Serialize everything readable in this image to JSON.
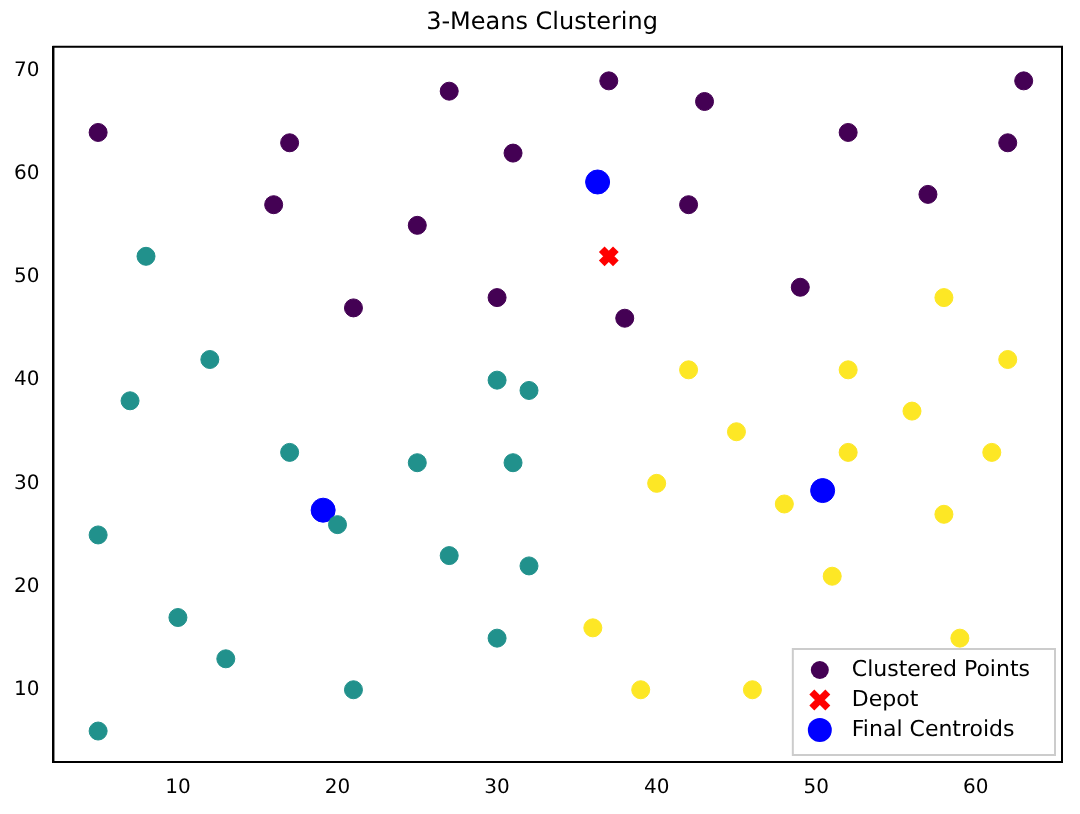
{
  "chart_data": {
    "type": "scatter",
    "title": "3-Means Clustering",
    "xlim": [
      2.2,
      65.4
    ],
    "ylim": [
      3.0,
      72.3
    ],
    "xticks": [
      10,
      20,
      30,
      40,
      50,
      60
    ],
    "yticks": [
      10,
      20,
      30,
      40,
      50,
      60,
      70
    ],
    "grid": false,
    "legend": "bottom right",
    "series": [
      {
        "name": "Clustered Points",
        "marker": "circle",
        "color": "#440154",
        "x": [
          5,
          17,
          16,
          21,
          25,
          27,
          31,
          30,
          37,
          43,
          38,
          42,
          52,
          49,
          57,
          62,
          63,
          8,
          12,
          7,
          17,
          5,
          10,
          13,
          5,
          20,
          21,
          25,
          27,
          30,
          32,
          31,
          32,
          30,
          58,
          42,
          52,
          62,
          45,
          56,
          40,
          52,
          61,
          48,
          58,
          51,
          36,
          59,
          39,
          46
        ],
        "values": [
          64,
          63,
          57,
          47,
          55,
          68,
          62,
          48,
          69,
          67,
          46,
          57,
          64,
          49,
          58,
          63,
          69,
          52,
          42,
          38,
          33,
          25,
          17,
          13,
          6,
          26,
          10,
          32,
          23,
          40,
          39,
          32,
          22,
          15,
          48,
          41,
          41,
          42,
          35,
          37,
          30,
          33,
          33,
          28,
          27,
          21,
          16,
          15,
          10,
          10
        ],
        "colors": [
          "#440154",
          "#440154",
          "#440154",
          "#440154",
          "#440154",
          "#440154",
          "#440154",
          "#440154",
          "#440154",
          "#440154",
          "#440154",
          "#440154",
          "#440154",
          "#440154",
          "#440154",
          "#440154",
          "#440154",
          "#21918c",
          "#21918c",
          "#21918c",
          "#21918c",
          "#21918c",
          "#21918c",
          "#21918c",
          "#21918c",
          "#21918c",
          "#21918c",
          "#21918c",
          "#21918c",
          "#21918c",
          "#21918c",
          "#21918c",
          "#21918c",
          "#21918c",
          "#fde725",
          "#fde725",
          "#fde725",
          "#fde725",
          "#fde725",
          "#fde725",
          "#fde725",
          "#fde725",
          "#fde725",
          "#fde725",
          "#fde725",
          "#fde725",
          "#fde725",
          "#fde725",
          "#fde725",
          "#fde725"
        ]
      },
      {
        "name": "Depot",
        "marker": "cross",
        "color": "#ff0000",
        "x": [
          37
        ],
        "values": [
          52
        ]
      },
      {
        "name": "Final Centroids",
        "marker": "circle",
        "color": "#0000ff",
        "x": [
          36.3,
          19.1,
          50.4
        ],
        "values": [
          59.2,
          27.4,
          29.3
        ]
      }
    ]
  }
}
